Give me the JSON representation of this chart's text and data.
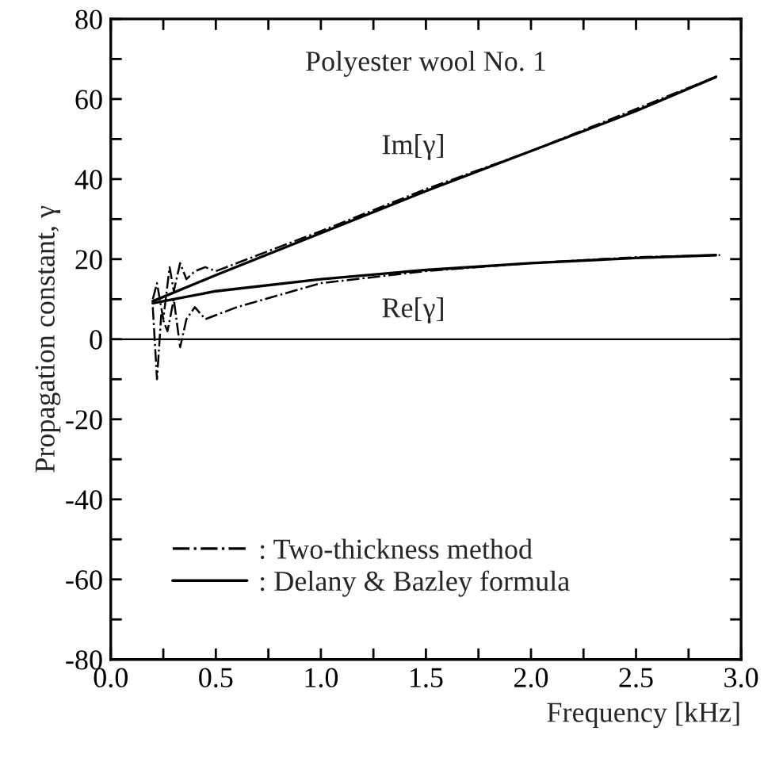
{
  "chart_data": {
    "type": "line",
    "title": "Polyester wool No. 1",
    "xlabel": "Frequency [kHz]",
    "ylabel": "Propagation constant, γ",
    "xlim": [
      0.0,
      3.0
    ],
    "ylim": [
      -80,
      80
    ],
    "xticks": [
      {
        "value": 0,
        "label": "0.0"
      },
      {
        "value": 0.25,
        "label": null
      },
      0.5,
      {
        "value": 0.75,
        "label": null
      },
      {
        "value": 1,
        "label": "1.0"
      },
      {
        "value": 1.25,
        "label": null
      },
      1.5,
      {
        "value": 1.75,
        "label": null
      },
      {
        "value": 2,
        "label": "2.0"
      },
      {
        "value": 2.25,
        "label": null
      },
      2.5,
      {
        "value": 2.75,
        "label": null
      },
      {
        "value": 3,
        "label": "3.0"
      }
    ],
    "yticks": [
      -80,
      {
        "value": -70,
        "label": null
      },
      -60,
      {
        "value": -50,
        "label": null
      },
      -40,
      {
        "value": -30,
        "label": null
      },
      -20,
      {
        "value": -10,
        "label": null
      },
      0,
      {
        "value": 10,
        "label": null
      },
      20,
      {
        "value": 30,
        "label": null
      },
      40,
      {
        "value": 50,
        "label": null
      },
      60,
      {
        "value": 70,
        "label": null
      },
      80
    ],
    "grid": false,
    "legend": "bottom left",
    "marker": "none",
    "ref_lines": [
      {
        "axis": "y",
        "value": 0,
        "color": "#000000",
        "line_style": "solid"
      }
    ],
    "annotations": [
      "Im[γ]",
      "Re[γ]"
    ],
    "series": [
      {
        "name": ": Two-thickness method",
        "color": "#000000",
        "line_style": "dashdot",
        "x": [
          0.2,
          0.22,
          0.25,
          0.28,
          0.3,
          0.33,
          0.36,
          0.4,
          0.45,
          0.5,
          0.7,
          1.0,
          1.5,
          2.0,
          2.5,
          2.9
        ],
        "values": [
          10,
          14,
          5,
          18,
          12,
          19,
          15,
          17,
          18,
          17,
          21,
          27,
          37.5,
          47,
          57.5,
          66
        ]
      },
      {
        "color": "#000000",
        "line_style": "dashdot",
        "x": [
          0.2,
          0.22,
          0.24,
          0.27,
          0.3,
          0.33,
          0.36,
          0.4,
          0.45,
          0.5,
          0.6,
          0.8,
          1.0,
          1.5,
          2.0,
          2.5,
          2.9
        ],
        "values": [
          8,
          -10,
          6,
          2,
          10,
          -2,
          5,
          8,
          5,
          6,
          8,
          11,
          14,
          17,
          19,
          20.5,
          21
        ]
      },
      {
        "name": ": Delany & Bazley formula",
        "color": "#000000",
        "line_style": "solid",
        "x": [
          0.2,
          0.5,
          1.0,
          1.5,
          2.0,
          2.5,
          2.88
        ],
        "values": [
          9.5,
          16,
          26.5,
          37,
          47,
          57,
          65.5
        ]
      },
      {
        "color": "#000000",
        "line_style": "solid",
        "x": [
          0.2,
          0.5,
          1.0,
          1.5,
          2.0,
          2.5,
          2.88
        ],
        "values": [
          9,
          12,
          15,
          17.3,
          19,
          20.3,
          21
        ]
      }
    ]
  }
}
